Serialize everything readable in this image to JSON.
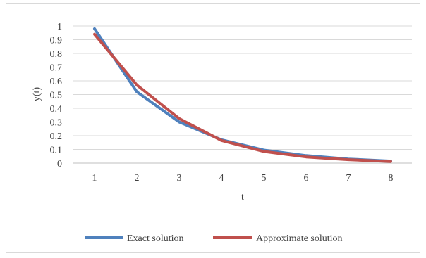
{
  "chart_data": {
    "type": "line",
    "title": "",
    "xlabel": "t",
    "ylabel": "y(t)",
    "categories": [
      "1",
      "2",
      "3",
      "4",
      "5",
      "6",
      "7",
      "8"
    ],
    "ylim": [
      0,
      1
    ],
    "yticks": [
      "0",
      "0.1",
      "0.2",
      "0.3",
      "0.4",
      "0.5",
      "0.6",
      "0.7",
      "0.8",
      "0.9",
      "1"
    ],
    "grid": true,
    "legend_position": "bottom",
    "series": [
      {
        "name": "Exact solution",
        "color": "#4f81bd",
        "values": [
          0.98,
          0.52,
          0.3,
          0.17,
          0.095,
          0.055,
          0.03,
          0.015
        ]
      },
      {
        "name": "Approximate solution",
        "color": "#c0504d",
        "values": [
          0.94,
          0.57,
          0.325,
          0.165,
          0.085,
          0.045,
          0.025,
          0.012
        ]
      }
    ]
  }
}
